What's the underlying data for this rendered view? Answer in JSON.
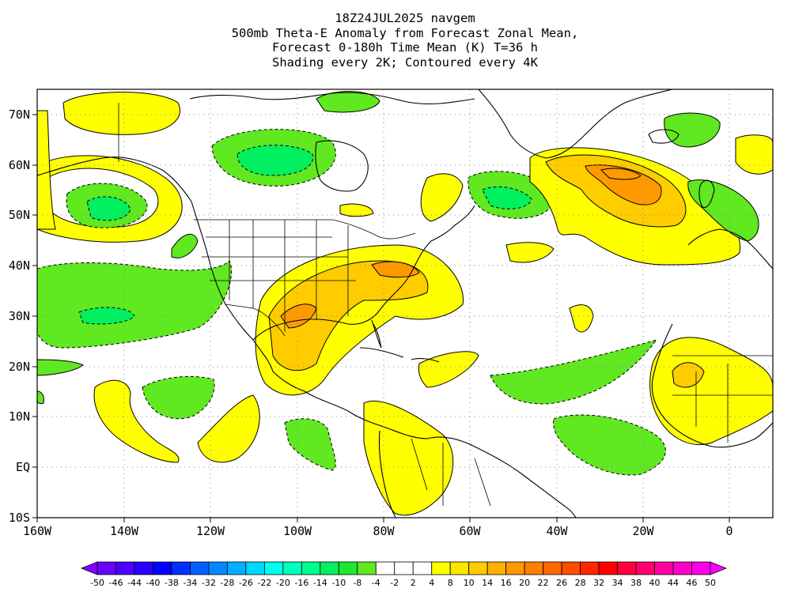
{
  "title": {
    "lines": [
      "18Z24JUL2025 navgem",
      "500mb Theta-E Anomaly from Forecast Zonal Mean,",
      "Forecast 0-180h Time Mean (K) T=36 h",
      "Shading every 2K; Contoured every 4K"
    ]
  },
  "map": {
    "lon_range": [
      -160,
      10
    ],
    "lat_range": [
      -10,
      75
    ],
    "grid_lines": "dotted",
    "lon_labels": [
      "160W",
      "140W",
      "120W",
      "100W",
      "80W",
      "60W",
      "40W",
      "20W",
      "0"
    ],
    "lat_labels": [
      "70N",
      "60N",
      "50N",
      "40N",
      "30N",
      "20N",
      "10N",
      "EQ",
      "10S"
    ]
  },
  "colorbar": {
    "labels": [
      "-50",
      "-46",
      "-44",
      "-40",
      "-38",
      "-34",
      "-32",
      "-28",
      "-26",
      "-22",
      "-20",
      "-16",
      "-14",
      "-10",
      "-8",
      "-4",
      "-2",
      "2",
      "4",
      "8",
      "10",
      "14",
      "16",
      "20",
      "22",
      "26",
      "28",
      "32",
      "34",
      "38",
      "40",
      "44",
      "46",
      "50"
    ],
    "colors": [
      "#8000ff",
      "#6a00ff",
      "#4b00ff",
      "#2a00ff",
      "#0000ff",
      "#0030ff",
      "#0060ff",
      "#0088ff",
      "#00b0ff",
      "#00d8ff",
      "#00ffee",
      "#00ffc0",
      "#00ff90",
      "#00f060",
      "#20e830",
      "#60e820",
      "#ffffff",
      "#ffffff",
      "#ffffff",
      "#ffff00",
      "#ffe600",
      "#ffcc00",
      "#ffb300",
      "#ff9900",
      "#ff8000",
      "#ff6600",
      "#ff4d00",
      "#ff2600",
      "#ff0000",
      "#ff0040",
      "#ff0070",
      "#ff00a0",
      "#ff00c8",
      "#ff00e6",
      "#ff00ff"
    ]
  },
  "features": {
    "positive_anomaly_color": "#ffff00",
    "moderate_positive_color": "#ffcc00",
    "strong_positive_color": "#ff9900",
    "negative_anomaly_color": "#60e820",
    "strong_negative_color": "#00f060"
  }
}
